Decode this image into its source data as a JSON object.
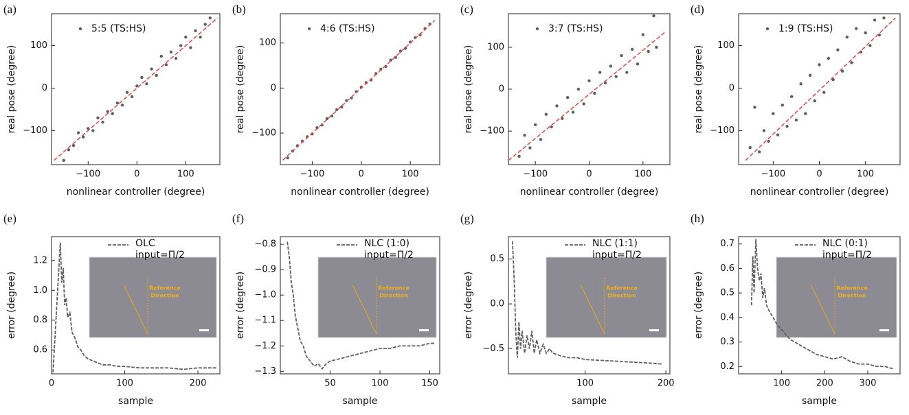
{
  "chart_data": [
    {
      "type": "scatter",
      "panel_label": "(a)",
      "x_label": "nonlinear controller (degree)",
      "y_label": "real pose (degree)",
      "xlim": [
        -175,
        170
      ],
      "ylim": [
        -180,
        175
      ],
      "xticks": [
        {
          "value": -100,
          "label": "−100"
        },
        0,
        100
      ],
      "yticks": [
        {
          "value": -100,
          "label": "−100"
        },
        0,
        100
      ],
      "series": [
        {
          "name": "5:5 (TS:HS)",
          "color": "#5f5f5f",
          "x": [
            -150,
            -140,
            -130,
            -120,
            -110,
            -100,
            -90,
            -80,
            -70,
            -60,
            -50,
            -40,
            -30,
            -20,
            -10,
            0,
            10,
            20,
            30,
            40,
            50,
            60,
            70,
            80,
            90,
            100,
            110,
            120,
            130,
            140,
            150
          ],
          "values": [
            -170,
            -145,
            -135,
            -105,
            -115,
            -95,
            -100,
            -70,
            -80,
            -55,
            -60,
            -35,
            -40,
            -10,
            -20,
            5,
            25,
            10,
            45,
            30,
            75,
            55,
            85,
            70,
            100,
            120,
            95,
            135,
            120,
            150,
            165
          ]
        }
      ],
      "fit_line": {
        "color": "#d9534f",
        "x": [
          -170,
          165
        ],
        "values": [
          -170,
          165
        ]
      }
    },
    {
      "type": "scatter",
      "panel_label": "(b)",
      "x_label": "nonlinear controller (degree)",
      "y_label": "real pose (degree)",
      "xlim": [
        -165,
        160
      ],
      "ylim": [
        -170,
        165
      ],
      "xticks": [
        {
          "value": -100,
          "label": "−100"
        },
        0,
        100
      ],
      "yticks": [
        {
          "value": -100,
          "label": "−100"
        },
        0,
        100
      ],
      "series": [
        {
          "name": "4:6 (TS:HS)",
          "color": "#5f5f5f",
          "x": [
            -150,
            -140,
            -130,
            -120,
            -110,
            -100,
            -90,
            -80,
            -70,
            -60,
            -50,
            -40,
            -30,
            -20,
            -10,
            0,
            10,
            20,
            30,
            40,
            50,
            60,
            70,
            80,
            90,
            100,
            110,
            120,
            130,
            140
          ],
          "values": [
            -155,
            -140,
            -128,
            -118,
            -108,
            -102,
            -88,
            -82,
            -68,
            -62,
            -48,
            -42,
            -28,
            -22,
            -8,
            2,
            12,
            18,
            32,
            42,
            48,
            62,
            68,
            82,
            88,
            102,
            112,
            118,
            132,
            142
          ]
        }
      ],
      "fit_line": {
        "color": "#d9534f",
        "x": [
          -160,
          150
        ],
        "values": [
          -160,
          150
        ]
      }
    },
    {
      "type": "scatter",
      "panel_label": "(c)",
      "x_label": "nonlinear controller (degree)",
      "y_label": "real pose (degree)",
      "xlim": [
        -150,
        150
      ],
      "ylim": [
        -180,
        180
      ],
      "xticks": [
        {
          "value": -100,
          "label": "−100"
        },
        0,
        100
      ],
      "yticks": [
        {
          "value": -100,
          "label": "−100"
        },
        0,
        100
      ],
      "series": [
        {
          "name": "3:7 (TS:HS)",
          "color": "#5f5f5f",
          "x": [
            -130,
            -120,
            -110,
            -100,
            -90,
            -80,
            -70,
            -60,
            -50,
            -40,
            -30,
            -20,
            -10,
            0,
            10,
            20,
            30,
            40,
            50,
            60,
            70,
            80,
            90,
            100,
            110,
            120,
            125
          ],
          "values": [
            -160,
            -110,
            -140,
            -85,
            -120,
            -60,
            -90,
            -40,
            -70,
            -20,
            -55,
            0,
            -35,
            20,
            -10,
            40,
            15,
            55,
            30,
            80,
            40,
            95,
            60,
            130,
            90,
            175,
            100
          ]
        }
      ],
      "fit_line": {
        "color": "#d9534f",
        "x": [
          -150,
          140
        ],
        "values": [
          -170,
          135
        ]
      }
    },
    {
      "type": "scatter",
      "panel_label": "(d)",
      "x_label": "nonlinear controller (degree)",
      "y_label": "real pose (degree)",
      "xlim": [
        -175,
        175
      ],
      "ylim": [
        -180,
        175
      ],
      "xticks": [
        {
          "value": -100,
          "label": "−100"
        },
        0,
        100
      ],
      "yticks": [
        {
          "value": -100,
          "label": "−100"
        },
        0,
        100
      ],
      "series": [
        {
          "name": "1:9 (TS:HS)",
          "color": "#5f5f5f",
          "x": [
            -150,
            -140,
            -130,
            -120,
            -110,
            -100,
            -90,
            -80,
            -70,
            -60,
            -50,
            -40,
            -30,
            -20,
            -10,
            0,
            10,
            20,
            30,
            40,
            50,
            60,
            70,
            80,
            90,
            100,
            110,
            120,
            130,
            140
          ],
          "values": [
            -140,
            -45,
            -150,
            -100,
            -125,
            -60,
            -110,
            -40,
            -90,
            -20,
            -75,
            10,
            -60,
            30,
            -30,
            55,
            -10,
            70,
            20,
            90,
            40,
            120,
            60,
            140,
            85,
            130,
            100,
            160,
            125,
            165
          ]
        }
      ],
      "fit_line": {
        "color": "#d9534f",
        "x": [
          -160,
          165
        ],
        "values": [
          -170,
          165
        ]
      }
    },
    {
      "type": "line",
      "panel_label": "(e)",
      "x_label": "sample",
      "y_label": "error (degree)",
      "xlim": [
        0,
        230
      ],
      "ylim": [
        0.44,
        1.36
      ],
      "xticks": [
        0,
        100,
        200
      ],
      "yticks": [
        0.6,
        0.8,
        {
          "value": 1.0,
          "label": "1.0"
        },
        1.2
      ],
      "legend_note": "input=Π/2",
      "inset_text": [
        "Reference",
        "Direction"
      ],
      "series": [
        {
          "name": "OLC",
          "color": "#5f5f5f",
          "x": [
            2,
            12,
            14,
            16,
            18,
            20,
            22,
            25,
            28,
            32,
            36,
            40,
            45,
            50,
            60,
            70,
            80,
            90,
            100,
            120,
            140,
            160,
            180,
            200,
            225
          ],
          "values": [
            0.45,
            1.32,
            1.05,
            1.15,
            0.9,
            0.95,
            0.82,
            0.85,
            0.72,
            0.68,
            0.62,
            0.6,
            0.56,
            0.54,
            0.52,
            0.5,
            0.5,
            0.49,
            0.49,
            0.48,
            0.48,
            0.48,
            0.47,
            0.48,
            0.48
          ]
        }
      ]
    },
    {
      "type": "line",
      "panel_label": "(f)",
      "x_label": "sample",
      "y_label": "error (degree)",
      "xlim": [
        0,
        160
      ],
      "ylim": [
        -1.31,
        -0.77
      ],
      "xticks": [
        50,
        100,
        150
      ],
      "yticks": [
        {
          "value": -1.3,
          "label": "−1.3"
        },
        {
          "value": -1.2,
          "label": "−1.2"
        },
        {
          "value": -1.1,
          "label": "−1.1"
        },
        {
          "value": -1.0,
          "label": "−1.0"
        },
        {
          "value": -0.9,
          "label": "−0.9"
        },
        {
          "value": -0.8,
          "label": "−0.8"
        }
      ],
      "legend_note": "input=Π/2",
      "inset_text": [
        "Reference",
        "Direction"
      ],
      "series": [
        {
          "name": "NLC (1:0)",
          "color": "#5f5f5f",
          "x": [
            7,
            9,
            11,
            13,
            15,
            17,
            20,
            23,
            26,
            30,
            34,
            38,
            42,
            46,
            50,
            60,
            70,
            80,
            90,
            100,
            110,
            120,
            130,
            140,
            150,
            155
          ],
          "values": [
            -0.79,
            -0.85,
            -0.95,
            -1.0,
            -1.08,
            -1.12,
            -1.18,
            -1.2,
            -1.24,
            -1.26,
            -1.28,
            -1.27,
            -1.29,
            -1.27,
            -1.26,
            -1.25,
            -1.24,
            -1.23,
            -1.22,
            -1.21,
            -1.21,
            -1.2,
            -1.2,
            -1.2,
            -1.19,
            -1.19
          ]
        }
      ]
    },
    {
      "type": "line",
      "panel_label": "(g)",
      "x_label": "sample",
      "y_label": "error (degree)",
      "xlim": [
        5,
        205
      ],
      "ylim": [
        -0.78,
        0.75
      ],
      "xticks": [
        100,
        200
      ],
      "yticks": [
        {
          "value": -0.5,
          "label": "−0.5"
        },
        {
          "value": 0.0,
          "label": "0.0"
        },
        0.5
      ],
      "legend_note": "input=Π/2",
      "inset_text": [
        "Reference",
        "Direction"
      ],
      "series": [
        {
          "name": "NLC (1:1)",
          "color": "#5f5f5f",
          "x": [
            10,
            12,
            14,
            16,
            18,
            20,
            22,
            25,
            28,
            31,
            34,
            37,
            40,
            44,
            48,
            52,
            56,
            60,
            70,
            80,
            90,
            100,
            120,
            140,
            160,
            180,
            195
          ],
          "values": [
            0.7,
            0.3,
            -0.3,
            -0.6,
            -0.2,
            -0.5,
            -0.3,
            -0.55,
            -0.35,
            -0.5,
            -0.3,
            -0.55,
            -0.4,
            -0.55,
            -0.45,
            -0.55,
            -0.5,
            -0.55,
            -0.58,
            -0.6,
            -0.6,
            -0.62,
            -0.63,
            -0.64,
            -0.65,
            -0.66,
            -0.67
          ]
        }
      ]
    },
    {
      "type": "line",
      "panel_label": "(h)",
      "x_label": "sample",
      "y_label": "error (degree)",
      "xlim": [
        0,
        375
      ],
      "ylim": [
        0.17,
        0.73
      ],
      "xticks": [
        100,
        200,
        300
      ],
      "yticks": [
        0.2,
        0.3,
        0.4,
        0.5,
        0.6,
        0.7
      ],
      "legend_note": "input=Π/2",
      "inset_text": [
        "Reference",
        "Direction"
      ],
      "series": [
        {
          "name": "NLC (0:1)",
          "color": "#5f5f5f",
          "x": [
            30,
            33,
            36,
            40,
            44,
            48,
            52,
            56,
            60,
            65,
            70,
            80,
            90,
            100,
            120,
            140,
            160,
            180,
            200,
            220,
            240,
            260,
            280,
            300,
            320,
            340,
            360
          ],
          "values": [
            0.45,
            0.65,
            0.5,
            0.72,
            0.6,
            0.55,
            0.58,
            0.48,
            0.52,
            0.45,
            0.43,
            0.4,
            0.37,
            0.35,
            0.31,
            0.29,
            0.27,
            0.25,
            0.24,
            0.23,
            0.24,
            0.22,
            0.21,
            0.21,
            0.2,
            0.2,
            0.19
          ]
        }
      ]
    }
  ]
}
